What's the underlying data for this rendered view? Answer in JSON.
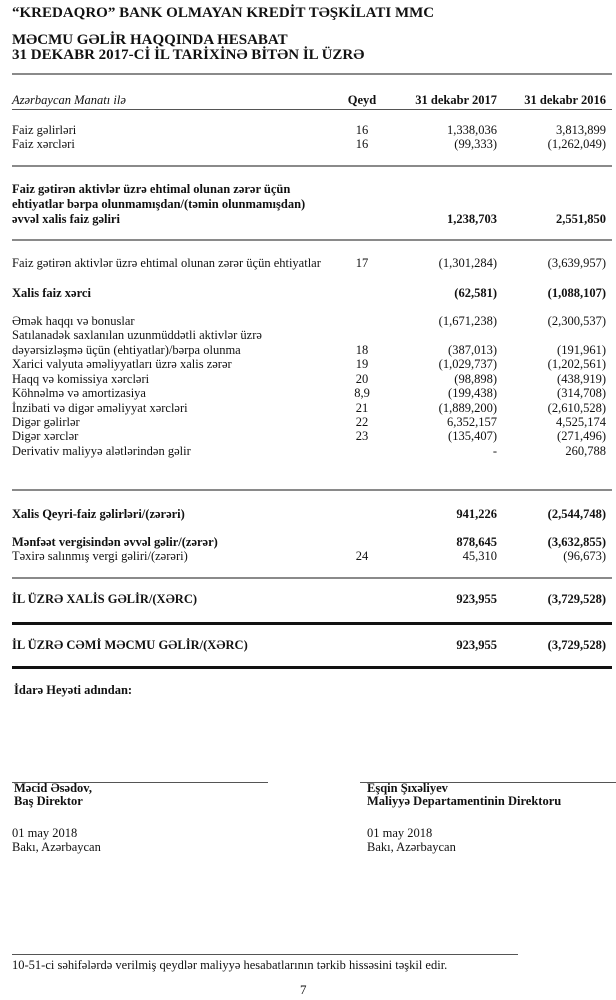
{
  "company": "“KREDAQRO” BANK OLMAYAN KREDİT TƏŞKİLATI MMC",
  "report_title": "MƏCMU GƏLİR HAQQINDA HESABAT",
  "report_subtitle": "31 DEKABR 2017-Cİ İL TARİXİNƏ BİTƏN İL ÜZRƏ",
  "header": {
    "currency": "Azərbaycan Manatı ilə",
    "note": "Qeyd",
    "col_2017": "31 dekabr 2017",
    "col_2016": "31 dekabr 2016"
  },
  "rows": [
    {
      "label": "Faiz gəlirləri",
      "note": "16",
      "v2017": "1,338,036",
      "v2016": "3,813,899",
      "bold": false
    },
    {
      "label": "Faiz xərcləri",
      "note": "16",
      "v2017": "(99,333)",
      "v2016": "(1,262,049)",
      "bold": false
    },
    {
      "label": "Faiz gətirən aktivlər üzrə ehtimal olunan zərər üçün",
      "note": "",
      "v2017": "",
      "v2016": "",
      "bold": true
    },
    {
      "label": "ehtiyatlar bərpa olunmamışdan/(təmin olunmamışdan)",
      "note": "",
      "v2017": "",
      "v2016": "",
      "bold": true
    },
    {
      "label": "əvvəl xalis faiz gəliri",
      "note": "",
      "v2017": "1,238,703",
      "v2016": "2,551,850",
      "bold": true
    },
    {
      "label": "Faiz gətirən aktivlər üzrə ehtimal olunan zərər üçün ehtiyatlar",
      "note": "17",
      "v2017": "(1,301,284)",
      "v2016": "(3,639,957)",
      "bold": false
    },
    {
      "label": "Xalis faiz xərci",
      "note": "",
      "v2017": "(62,581)",
      "v2016": "(1,088,107)",
      "bold": true
    },
    {
      "label": "Əmək haqqı və bonuslar",
      "note": "",
      "v2017": "(1,671,238)",
      "v2016": "(2,300,537)",
      "bold": false
    },
    {
      "label": "Satılanadək saxlanılan uzunmüddətli aktivlər üzrə",
      "note": "",
      "v2017": "",
      "v2016": "",
      "bold": false
    },
    {
      "label": "dəyərsizləşmə üçün (ehtiyatlar)/bərpa olunma",
      "note": "18",
      "v2017": "(387,013)",
      "v2016": "(191,961)",
      "bold": false
    },
    {
      "label": "Xarici valyuta əməliyyatları üzrə xalis zərər",
      "note": "19",
      "v2017": "(1,029,737)",
      "v2016": "(1,202,561)",
      "bold": false
    },
    {
      "label": "Haqq və komissiya xərcləri",
      "note": "20",
      "v2017": "(98,898)",
      "v2016": "(438,919)",
      "bold": false
    },
    {
      "label": "Köhnəlmə və amortizasiya",
      "note": "8,9",
      "v2017": "(199,438)",
      "v2016": "(314,708)",
      "bold": false
    },
    {
      "label": "İnzibati və digər əməliyyat xərcləri",
      "note": "21",
      "v2017": "(1,889,200)",
      "v2016": "(2,610,528)",
      "bold": false
    },
    {
      "label": "Digər gəlirlər",
      "note": "22",
      "v2017": "6,352,157",
      "v2016": "4,525,174",
      "bold": false
    },
    {
      "label": "Digər xərclər",
      "note": "23",
      "v2017": "(135,407)",
      "v2016": "(271,496)",
      "bold": false
    },
    {
      "label": "Derivativ maliyyə alətlərindən gəlir",
      "note": "",
      "v2017": "-",
      "v2016": "260,788",
      "bold": false
    },
    {
      "label": "Xalis Qeyri-faiz gəlirləri/(zərəri)",
      "note": "",
      "v2017": "941,226",
      "v2016": "(2,544,748)",
      "bold": true
    },
    {
      "label": "Mənfəət vergisindən əvvəl gəlir/(zərər)",
      "note": "",
      "v2017": "878,645",
      "v2016": "(3,632,855)",
      "bold": true
    },
    {
      "label": "Təxirə salınmış vergi gəliri/(zərəri)",
      "note": "24",
      "v2017": "45,310",
      "v2016": "(96,673)",
      "bold": false
    },
    {
      "label": "İL ÜZRƏ XALİS GƏLİR/(XƏRC)",
      "note": "",
      "v2017": "923,955",
      "v2016": "(3,729,528)",
      "bold": true
    },
    {
      "label": "İL ÜZRƏ CƏMİ MƏCMU GƏLİR/(XƏRC)",
      "note": "",
      "v2017": "923,955",
      "v2016": "(3,729,528)",
      "bold": true
    }
  ],
  "board": "İdarə Heyəti adından:",
  "signatories": [
    {
      "name": "Məcid Əsədov,",
      "title": "Baş Direktor",
      "date": "01 may 2018",
      "place": "Bakı, Azərbaycan"
    },
    {
      "name": "Eşqin Şıxəliyev",
      "title": "Maliyyə Departamentinin Direktoru",
      "date": "01 may 2018",
      "place": "Bakı, Azərbaycan"
    }
  ],
  "footer_note": "10-51-ci səhifələrdə verilmiş qeydlər maliyyə hesabatlarının tərkib hissəsini təşkil edir.",
  "page_number": "7"
}
